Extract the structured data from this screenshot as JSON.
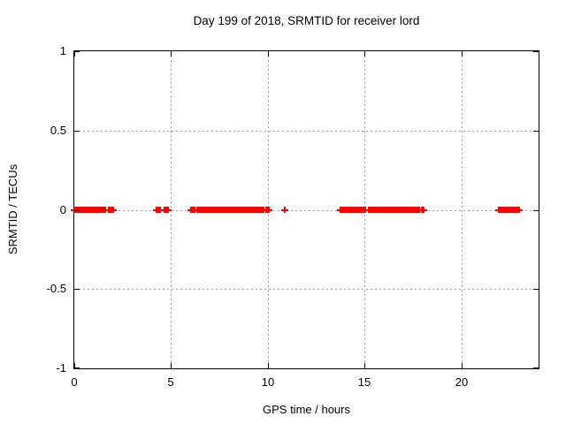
{
  "page": {
    "background": "#ffffff"
  },
  "chart_data": {
    "type": "scatter",
    "title": "Day 199 of 2018, SRMTID for receiver lord",
    "xlabel": "GPS time / hours",
    "ylabel": "SRMTID / TECUs",
    "xlim": [
      0,
      24
    ],
    "ylim": [
      -1,
      1
    ],
    "xticks": [
      {
        "v": 0,
        "label": "0"
      },
      {
        "v": 5,
        "label": "5"
      },
      {
        "v": 10,
        "label": "10"
      },
      {
        "v": 15,
        "label": "15"
      },
      {
        "v": 20,
        "label": "20"
      }
    ],
    "yticks": [
      {
        "v": 1,
        "label": "1"
      },
      {
        "v": 0.5,
        "label": "0.5"
      },
      {
        "v": 0,
        "label": "0"
      },
      {
        "v": -0.5,
        "label": "-0.5"
      },
      {
        "v": -1,
        "label": "-1"
      }
    ],
    "grid": true,
    "grid_xticks": [
      5,
      10,
      15,
      20
    ],
    "grid_yticks": [
      -0.5,
      0,
      0.5
    ],
    "legend": "none",
    "marker": "plus",
    "colors": {
      "marker": "#ff0000",
      "grid": "#9e9e9e",
      "axis": "#000000",
      "text": "#000000"
    },
    "series": [
      {
        "name": "SRMTID",
        "y_value": 0,
        "segments_hours": [
          [
            0.0,
            1.6
          ],
          [
            1.8,
            2.05
          ],
          [
            4.25,
            4.45
          ],
          [
            4.65,
            4.85
          ],
          [
            6.02,
            6.18
          ],
          [
            6.35,
            6.85
          ],
          [
            6.92,
            9.8
          ],
          [
            9.9,
            10.02
          ],
          [
            10.9,
            10.9
          ],
          [
            13.78,
            13.9
          ],
          [
            14.0,
            15.05
          ],
          [
            15.2,
            15.35
          ],
          [
            15.42,
            15.68
          ],
          [
            15.78,
            17.85
          ],
          [
            17.95,
            18.02
          ],
          [
            21.95,
            23.0
          ]
        ]
      }
    ]
  }
}
